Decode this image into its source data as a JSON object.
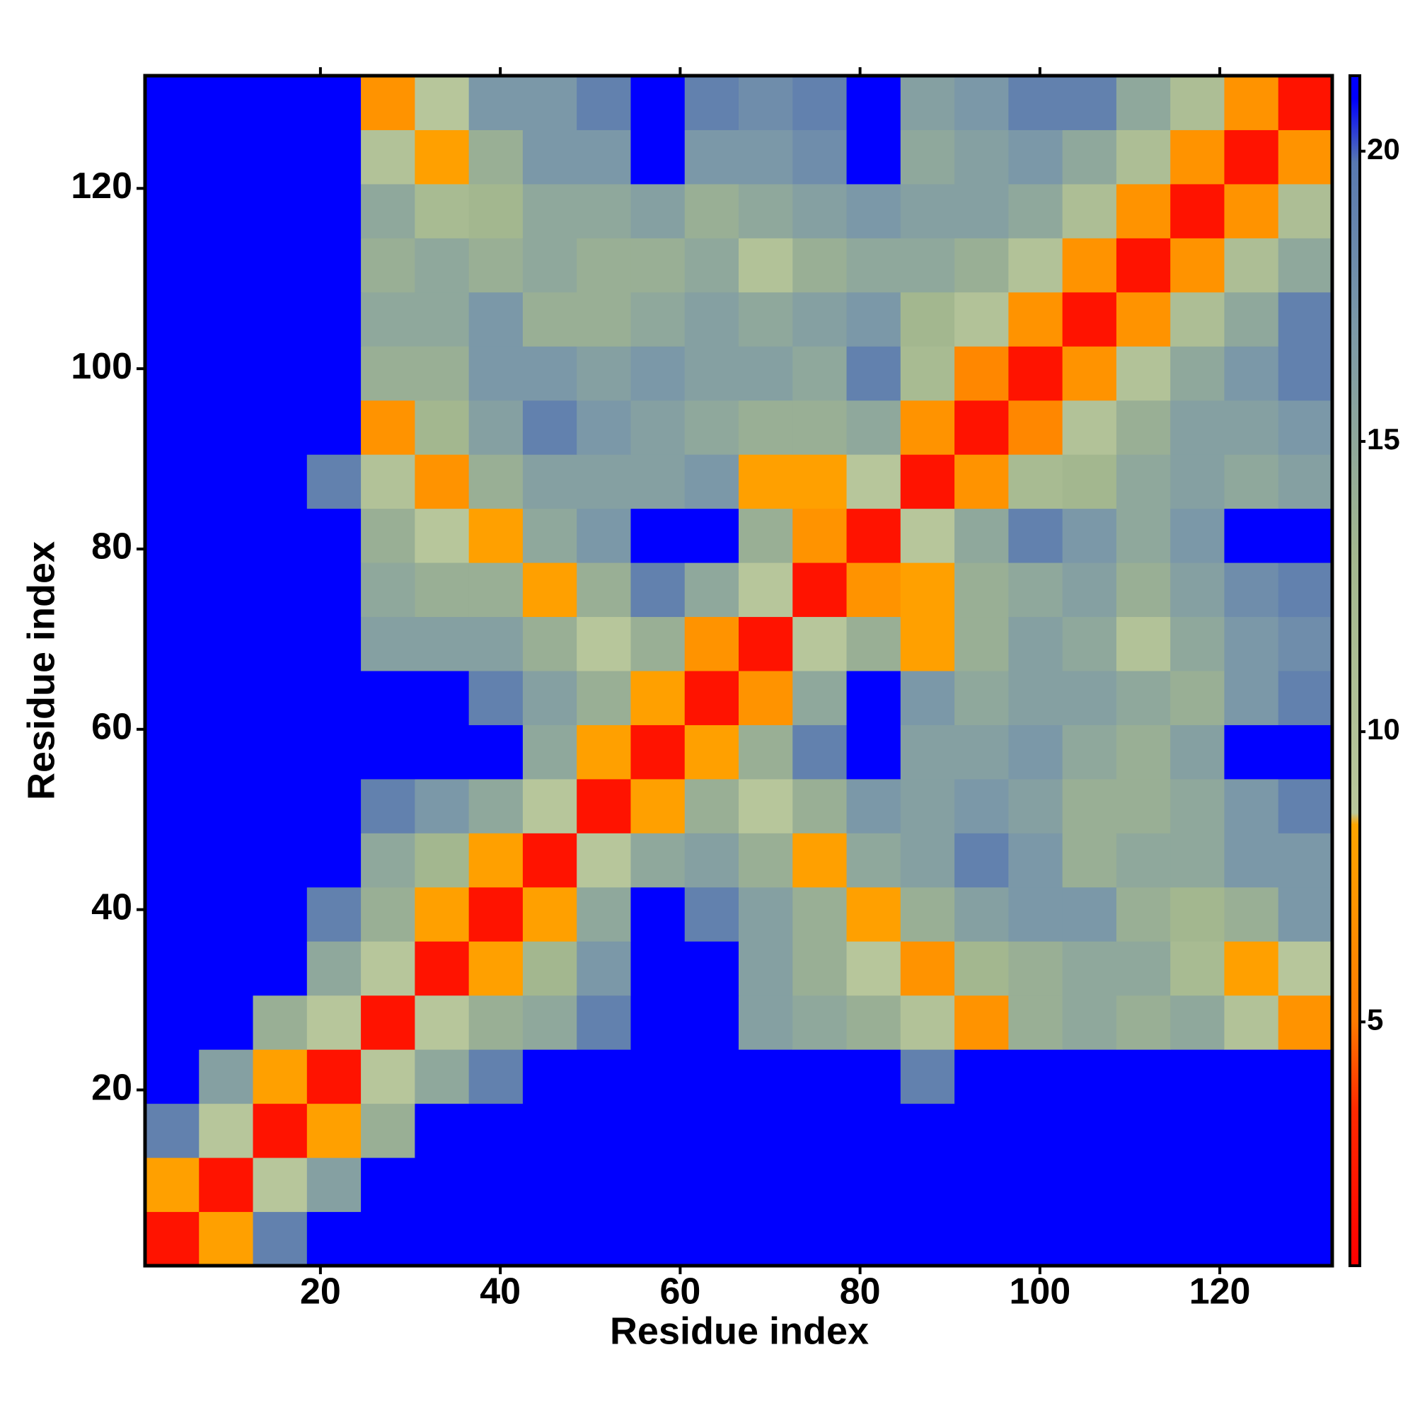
{
  "chart_data": {
    "type": "heatmap",
    "xlabel": "Residue index",
    "ylabel": "Residue index",
    "x": [
      3.5,
      9.5,
      15.5,
      21.5,
      27.5,
      33.5,
      39.5,
      45.5,
      51.5,
      57.5,
      63.5,
      69.5,
      75.5,
      81.5,
      87.5,
      93.5,
      99.5,
      105.5,
      111.5,
      117.5,
      123.5,
      129.5
    ],
    "y": [
      3.5,
      9.5,
      15.5,
      21.5,
      27.5,
      33.5,
      39.5,
      45.5,
      51.5,
      57.5,
      63.5,
      69.5,
      75.5,
      81.5,
      87.5,
      93.5,
      99.5,
      105.5,
      111.5,
      117.5,
      123.5,
      129.5
    ],
    "z": [
      [
        2,
        8,
        19,
        21,
        21,
        21,
        21,
        21,
        21,
        21,
        21,
        21,
        21,
        21,
        21,
        21,
        21,
        21,
        21,
        21,
        21,
        21
      ],
      [
        8,
        2,
        9,
        16,
        21,
        21,
        21,
        21,
        21,
        21,
        21,
        21,
        21,
        21,
        21,
        21,
        21,
        21,
        21,
        21,
        21,
        21
      ],
      [
        19,
        9,
        2,
        8,
        14,
        21,
        21,
        21,
        21,
        21,
        21,
        21,
        21,
        21,
        21,
        21,
        21,
        21,
        21,
        21,
        21,
        21
      ],
      [
        21,
        16,
        8,
        2,
        9,
        15,
        19,
        21,
        21,
        21,
        21,
        21,
        21,
        21,
        19,
        21,
        21,
        21,
        21,
        21,
        21,
        21
      ],
      [
        21,
        21,
        14,
        9,
        2,
        9,
        14,
        15,
        19,
        21,
        21,
        16,
        15,
        14,
        10,
        7,
        14,
        15,
        14,
        15,
        10,
        7
      ],
      [
        21,
        21,
        21,
        15,
        9,
        2,
        8,
        13,
        17,
        21,
        21,
        16,
        14,
        9,
        7,
        13,
        14,
        15,
        15,
        12,
        8,
        9
      ],
      [
        21,
        21,
        21,
        19,
        14,
        8,
        2,
        8,
        15,
        21,
        19,
        16,
        14,
        8,
        14,
        16,
        17,
        17,
        14,
        13,
        14,
        17
      ],
      [
        21,
        21,
        21,
        21,
        15,
        13,
        8,
        2,
        9,
        15,
        16,
        14,
        8,
        15,
        16,
        19,
        17,
        14,
        15,
        15,
        17,
        17
      ],
      [
        21,
        21,
        21,
        21,
        19,
        17,
        15,
        9,
        2,
        8,
        14,
        9,
        14,
        17,
        16,
        17,
        16,
        14,
        14,
        15,
        17,
        19
      ],
      [
        21,
        21,
        21,
        21,
        21,
        21,
        21,
        15,
        8,
        2,
        8,
        14,
        19,
        21,
        16,
        16,
        17,
        15,
        14,
        16,
        21,
        21
      ],
      [
        21,
        21,
        21,
        21,
        21,
        21,
        19,
        16,
        14,
        8,
        2,
        7,
        15,
        21,
        17,
        15,
        16,
        16,
        15,
        14,
        17,
        19
      ],
      [
        21,
        21,
        21,
        21,
        16,
        16,
        16,
        14,
        9,
        14,
        7,
        2,
        9,
        14,
        8,
        14,
        16,
        15,
        10,
        15,
        17,
        18
      ],
      [
        21,
        21,
        21,
        21,
        15,
        14,
        14,
        8,
        14,
        19,
        15,
        9,
        2,
        7,
        8,
        14,
        15,
        16,
        14,
        16,
        18,
        19
      ],
      [
        21,
        21,
        21,
        21,
        14,
        9,
        8,
        15,
        17,
        21,
        21,
        14,
        7,
        2,
        9,
        15,
        19,
        17,
        15,
        17,
        21,
        21
      ],
      [
        21,
        21,
        21,
        19,
        10,
        7,
        14,
        16,
        16,
        16,
        17,
        8,
        8,
        9,
        2,
        7,
        12,
        13,
        15,
        16,
        15,
        16
      ],
      [
        21,
        21,
        21,
        21,
        7,
        13,
        16,
        19,
        17,
        16,
        15,
        14,
        14,
        15,
        7,
        2,
        6,
        10,
        14,
        16,
        16,
        17
      ],
      [
        21,
        21,
        21,
        21,
        14,
        14,
        17,
        17,
        16,
        17,
        16,
        16,
        15,
        19,
        12,
        6,
        2,
        7,
        10,
        15,
        17,
        19
      ],
      [
        21,
        21,
        21,
        21,
        15,
        15,
        17,
        14,
        14,
        15,
        16,
        15,
        16,
        17,
        13,
        10,
        7,
        2,
        7,
        11,
        15,
        19
      ],
      [
        21,
        21,
        21,
        21,
        14,
        15,
        14,
        15,
        14,
        14,
        15,
        10,
        14,
        15,
        15,
        14,
        10,
        7,
        2,
        7,
        11,
        15
      ],
      [
        21,
        21,
        21,
        21,
        15,
        12,
        13,
        15,
        15,
        16,
        14,
        15,
        16,
        17,
        16,
        16,
        15,
        11,
        7,
        2,
        7,
        11
      ],
      [
        21,
        21,
        21,
        21,
        10,
        8,
        14,
        17,
        17,
        21,
        17,
        17,
        18,
        21,
        15,
        16,
        17,
        15,
        11,
        7,
        2,
        7
      ],
      [
        21,
        21,
        21,
        21,
        7,
        9,
        17,
        17,
        19,
        21,
        19,
        18,
        19,
        21,
        16,
        17,
        19,
        19,
        15,
        11,
        7,
        2
      ]
    ],
    "xlim": [
      0.5,
      132.5
    ],
    "ylim": [
      0.5,
      132.5
    ],
    "xticks": [
      20,
      40,
      60,
      80,
      100,
      120
    ],
    "yticks": [
      20,
      40,
      60,
      80,
      100,
      120
    ],
    "zlim": [
      0.8,
      21.3
    ],
    "zticks": [
      5,
      10,
      15,
      20
    ],
    "colorscale": [
      {
        "value": 0.8,
        "color": "#ff0000"
      },
      {
        "value": 3.5,
        "color": "#ff2a00"
      },
      {
        "value": 5,
        "color": "#ff7a00"
      },
      {
        "value": 8.4,
        "color": "#ffa500"
      },
      {
        "value": 8.6,
        "color": "#b9c79c"
      },
      {
        "value": 13,
        "color": "#a3b78f"
      },
      {
        "value": 17,
        "color": "#7b98a8"
      },
      {
        "value": 19.8,
        "color": "#5878b0"
      },
      {
        "value": 20.9,
        "color": "#0000ff"
      },
      {
        "value": 21.3,
        "color": "#0000ff"
      }
    ]
  }
}
